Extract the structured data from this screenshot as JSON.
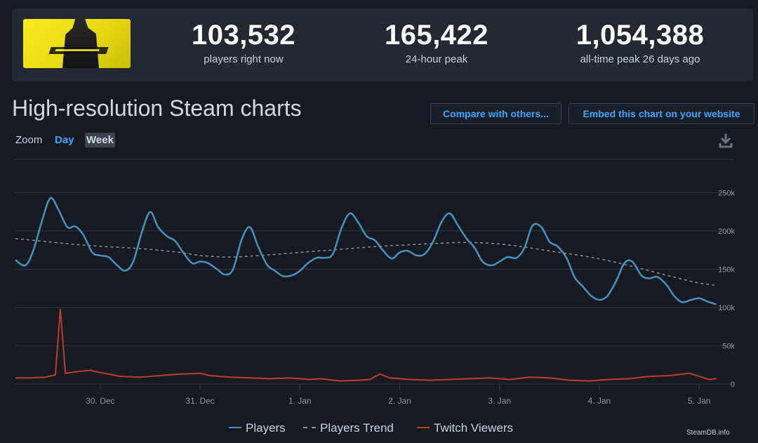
{
  "stats": {
    "current_players": "103,532",
    "current_label": "players right now",
    "peak_24h": "165,422",
    "peak_24h_label": "24-hour peak",
    "all_time_peak": "1,054,388",
    "all_time_label": "all-time peak 26 days ago"
  },
  "section_title": "High-resolution Steam charts",
  "buttons": {
    "compare": "Compare with others...",
    "embed": "Embed this chart on your website"
  },
  "zoom": {
    "label": "Zoom",
    "day": "Day",
    "week": "Week"
  },
  "credit": "SteamDB.info",
  "colors": {
    "players": "#4393c3",
    "trend": "#8b8f96",
    "twitch": "#b8402a",
    "accent": "#3ea6ff"
  },
  "chart_data": {
    "type": "line",
    "ylim": [
      0,
      275000
    ],
    "yticks": [
      0,
      50000,
      100000,
      150000,
      200000,
      250000
    ],
    "ytick_labels": [
      "0",
      "50k",
      "100k",
      "150k",
      "200k",
      "250k"
    ],
    "xlim": [
      29.15,
      36.35
    ],
    "xticks": [
      30,
      31,
      32,
      33,
      34,
      35,
      36
    ],
    "xtick_labels": [
      "30. Dec",
      "31. Dec",
      "1. Jan",
      "2. Jan",
      "3. Jan",
      "4. Jan",
      "5. Jan"
    ],
    "x_axis_note": "x = day offset: 30 = 30 Dec 00:00 ... 36 = 5 Jan 00:00",
    "legend": [
      "Players",
      "Players Trend",
      "Twitch Viewers"
    ],
    "series": [
      {
        "name": "Players",
        "points": [
          [
            29.15,
            162000
          ],
          [
            29.25,
            155000
          ],
          [
            29.33,
            175000
          ],
          [
            29.42,
            215000
          ],
          [
            29.5,
            243000
          ],
          [
            29.58,
            228000
          ],
          [
            29.67,
            205000
          ],
          [
            29.75,
            206000
          ],
          [
            29.83,
            195000
          ],
          [
            29.92,
            172000
          ],
          [
            30.0,
            168000
          ],
          [
            30.08,
            166000
          ],
          [
            30.17,
            155000
          ],
          [
            30.25,
            148000
          ],
          [
            30.33,
            160000
          ],
          [
            30.42,
            200000
          ],
          [
            30.5,
            225000
          ],
          [
            30.58,
            205000
          ],
          [
            30.67,
            193000
          ],
          [
            30.75,
            187000
          ],
          [
            30.83,
            172000
          ],
          [
            30.92,
            158000
          ],
          [
            31.0,
            160000
          ],
          [
            31.08,
            158000
          ],
          [
            31.17,
            150000
          ],
          [
            31.25,
            143000
          ],
          [
            31.33,
            150000
          ],
          [
            31.42,
            190000
          ],
          [
            31.5,
            205000
          ],
          [
            31.58,
            180000
          ],
          [
            31.67,
            156000
          ],
          [
            31.75,
            148000
          ],
          [
            31.83,
            141000
          ],
          [
            31.92,
            142000
          ],
          [
            32.0,
            148000
          ],
          [
            32.08,
            158000
          ],
          [
            32.17,
            165000
          ],
          [
            32.25,
            165000
          ],
          [
            32.33,
            170000
          ],
          [
            32.42,
            205000
          ],
          [
            32.5,
            223000
          ],
          [
            32.58,
            212000
          ],
          [
            32.67,
            193000
          ],
          [
            32.75,
            188000
          ],
          [
            32.83,
            175000
          ],
          [
            32.92,
            164000
          ],
          [
            33.0,
            172000
          ],
          [
            33.08,
            174000
          ],
          [
            33.17,
            168000
          ],
          [
            33.25,
            170000
          ],
          [
            33.33,
            185000
          ],
          [
            33.42,
            212000
          ],
          [
            33.5,
            223000
          ],
          [
            33.58,
            208000
          ],
          [
            33.67,
            190000
          ],
          [
            33.75,
            178000
          ],
          [
            33.83,
            160000
          ],
          [
            33.92,
            155000
          ],
          [
            34.0,
            160000
          ],
          [
            34.08,
            166000
          ],
          [
            34.17,
            165000
          ],
          [
            34.25,
            178000
          ],
          [
            34.33,
            207000
          ],
          [
            34.42,
            205000
          ],
          [
            34.5,
            186000
          ],
          [
            34.58,
            180000
          ],
          [
            34.67,
            165000
          ],
          [
            34.75,
            140000
          ],
          [
            34.83,
            128000
          ],
          [
            34.92,
            115000
          ],
          [
            35.0,
            110000
          ],
          [
            35.08,
            115000
          ],
          [
            35.17,
            135000
          ],
          [
            35.25,
            158000
          ],
          [
            35.33,
            160000
          ],
          [
            35.42,
            142000
          ],
          [
            35.5,
            138000
          ],
          [
            35.58,
            140000
          ],
          [
            35.67,
            130000
          ],
          [
            35.75,
            115000
          ],
          [
            35.83,
            107000
          ],
          [
            35.92,
            110000
          ],
          [
            36.0,
            112000
          ],
          [
            36.08,
            108000
          ],
          [
            36.17,
            104000
          ]
        ]
      },
      {
        "name": "Players Trend",
        "points": [
          [
            29.15,
            190000
          ],
          [
            29.4,
            187000
          ],
          [
            29.7,
            183000
          ],
          [
            30.0,
            180000
          ],
          [
            30.4,
            177000
          ],
          [
            30.8,
            172000
          ],
          [
            31.0,
            168000
          ],
          [
            31.3,
            166000
          ],
          [
            31.6,
            168000
          ],
          [
            31.9,
            171000
          ],
          [
            32.2,
            174000
          ],
          [
            32.5,
            177000
          ],
          [
            32.8,
            180000
          ],
          [
            33.1,
            182000
          ],
          [
            33.4,
            184000
          ],
          [
            33.7,
            185000
          ],
          [
            34.0,
            183000
          ],
          [
            34.3,
            178000
          ],
          [
            34.6,
            172000
          ],
          [
            34.9,
            166000
          ],
          [
            35.2,
            158000
          ],
          [
            35.5,
            148000
          ],
          [
            35.8,
            138000
          ],
          [
            36.0,
            132000
          ],
          [
            36.17,
            129000
          ]
        ]
      },
      {
        "name": "Twitch Viewers",
        "points": [
          [
            29.15,
            8000
          ],
          [
            29.3,
            8000
          ],
          [
            29.45,
            9000
          ],
          [
            29.55,
            12000
          ],
          [
            29.6,
            98000
          ],
          [
            29.65,
            14000
          ],
          [
            29.75,
            16000
          ],
          [
            29.9,
            18000
          ],
          [
            30.0,
            15000
          ],
          [
            30.2,
            10000
          ],
          [
            30.4,
            9000
          ],
          [
            30.6,
            11000
          ],
          [
            30.8,
            13000
          ],
          [
            31.0,
            14000
          ],
          [
            31.1,
            11000
          ],
          [
            31.3,
            9000
          ],
          [
            31.5,
            8000
          ],
          [
            31.7,
            7000
          ],
          [
            31.9,
            8000
          ],
          [
            32.1,
            6000
          ],
          [
            32.2,
            7000
          ],
          [
            32.4,
            4000
          ],
          [
            32.6,
            5000
          ],
          [
            32.7,
            6000
          ],
          [
            32.8,
            13000
          ],
          [
            32.9,
            8000
          ],
          [
            33.1,
            6000
          ],
          [
            33.3,
            5000
          ],
          [
            33.5,
            6000
          ],
          [
            33.7,
            7000
          ],
          [
            33.9,
            8000
          ],
          [
            34.1,
            6000
          ],
          [
            34.3,
            9000
          ],
          [
            34.5,
            8000
          ],
          [
            34.7,
            5000
          ],
          [
            34.9,
            4000
          ],
          [
            35.1,
            6000
          ],
          [
            35.3,
            7000
          ],
          [
            35.5,
            10000
          ],
          [
            35.7,
            11000
          ],
          [
            35.9,
            14000
          ],
          [
            36.0,
            10000
          ],
          [
            36.1,
            6000
          ],
          [
            36.17,
            7000
          ]
        ]
      }
    ]
  }
}
